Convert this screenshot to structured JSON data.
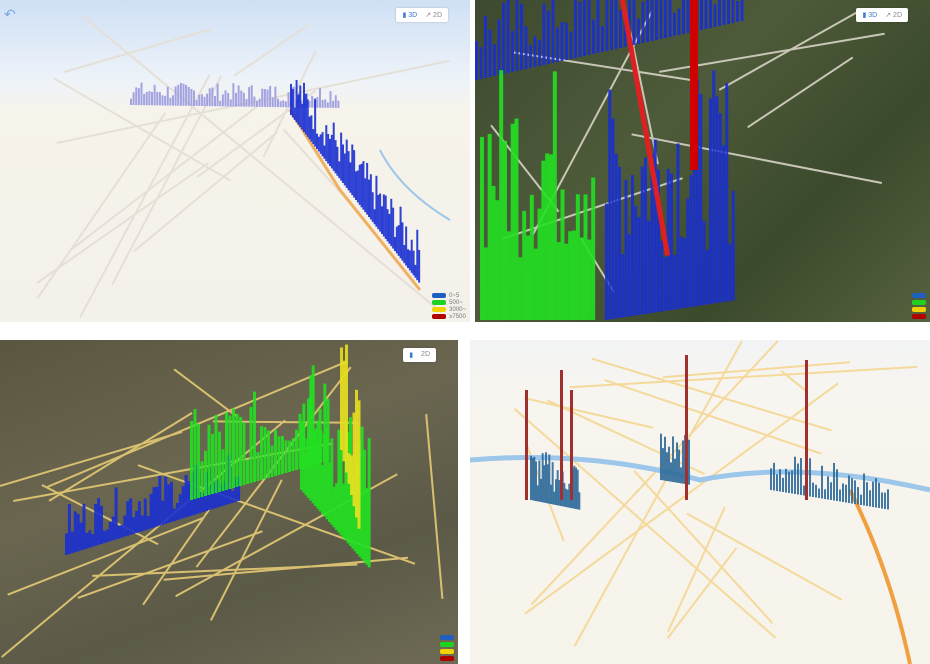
{
  "panels": [
    {
      "id": "p1",
      "tools": {
        "a": "▮ 3D",
        "b": "↗ 2D"
      },
      "legend": [
        "0~5",
        "500~",
        "3000~",
        "≥7500"
      ]
    },
    {
      "id": "p2",
      "tools": {
        "a": "▮ 3D",
        "b": "↗ 2D"
      },
      "legend": [
        "",
        "",
        "",
        ""
      ]
    },
    {
      "id": "p3",
      "tools": {
        "a": "▮",
        "b": "2D"
      },
      "legend": [
        "",
        "",
        "",
        ""
      ]
    },
    {
      "id": "p4"
    }
  ],
  "legend_colors": [
    "#1f5fbf",
    "#1fd21f",
    "#f2d200",
    "#b00000"
  ],
  "icons": {
    "back": "undo-arrow-icon"
  }
}
